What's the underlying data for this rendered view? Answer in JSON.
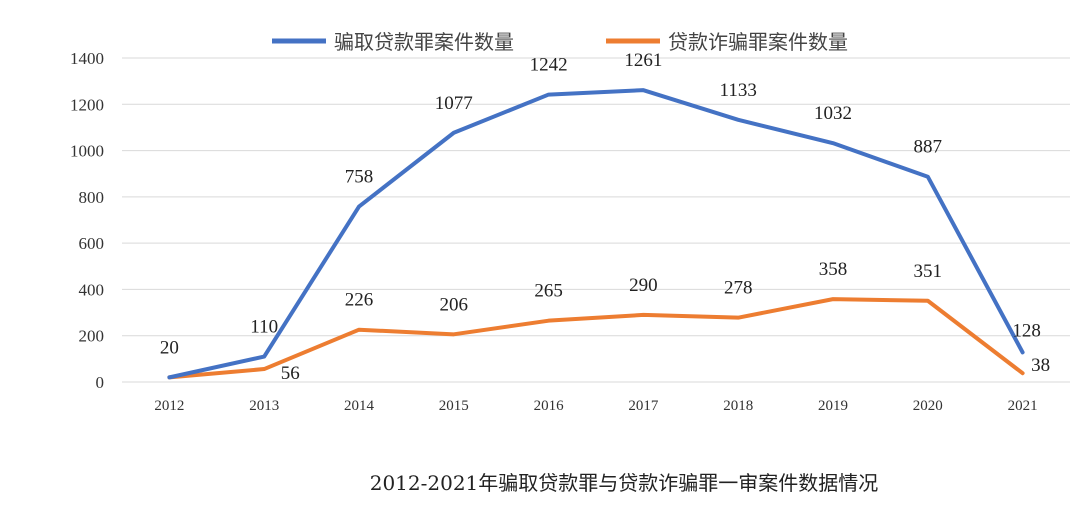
{
  "chart_data": {
    "type": "line",
    "caption": "2012-2021年骗取贷款罪与贷款诈骗罪一审案件数据情况",
    "categories": [
      "2012",
      "2013",
      "2014",
      "2015",
      "2016",
      "2017",
      "2018",
      "2019",
      "2020",
      "2021"
    ],
    "ylim": [
      0,
      1400
    ],
    "yticks": [
      0,
      200,
      400,
      600,
      800,
      1000,
      1200,
      1400
    ],
    "grid": true,
    "legend_position": "top",
    "series": [
      {
        "name": "骗取贷款罪案件数量",
        "color": "#4472C4",
        "values": [
          20,
          110,
          758,
          1077,
          1242,
          1261,
          1133,
          1032,
          887,
          128
        ]
      },
      {
        "name": "贷款诈骗罪案件数量",
        "color": "#ED7D31",
        "values": [
          20,
          56,
          226,
          206,
          265,
          290,
          278,
          358,
          351,
          38
        ]
      }
    ]
  }
}
